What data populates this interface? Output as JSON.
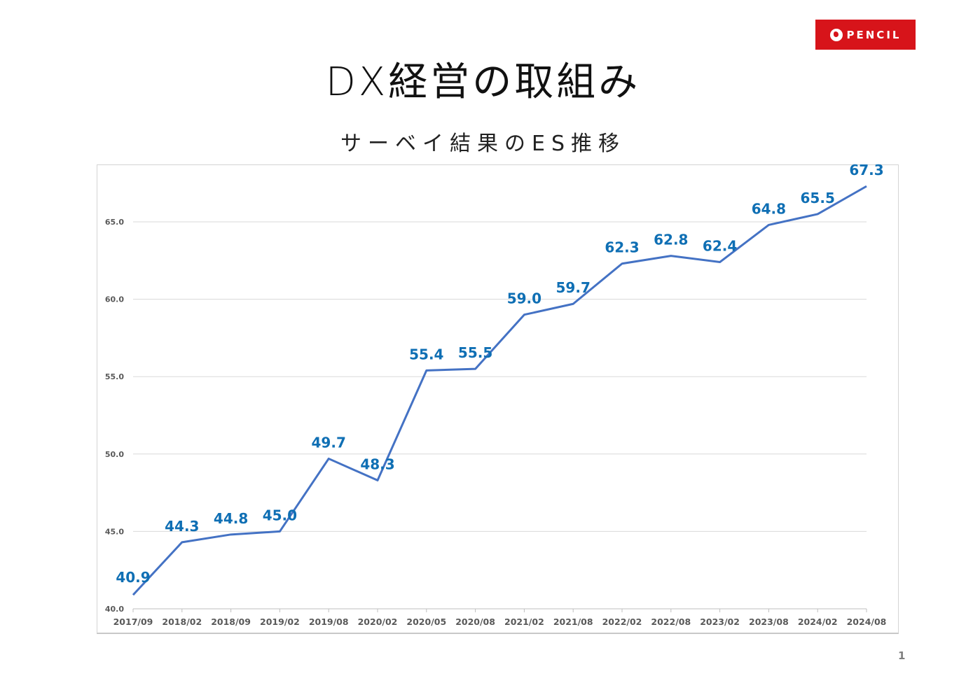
{
  "header": {
    "logo_text": "PENCIL",
    "title": "DX経営の取組み",
    "subtitle": "サーベイ結果のES推移"
  },
  "page_number": "1",
  "colors": {
    "line": "#4472c4",
    "data_label": "#0f6fb4",
    "axis_text": "#595959",
    "grid": "#d9d9d9",
    "logo_bg": "#d7141a"
  },
  "chart_data": {
    "type": "line",
    "title": "サーベイ結果のES推移",
    "xlabel": "",
    "ylabel": "",
    "categories": [
      "2017/09",
      "2018/02",
      "2018/09",
      "2019/02",
      "2019/08",
      "2020/02",
      "2020/05",
      "2020/08",
      "2021/02",
      "2021/08",
      "2022/02",
      "2022/08",
      "2023/02",
      "2023/08",
      "2024/02",
      "2024/08"
    ],
    "series": [
      {
        "name": "ES",
        "values": [
          40.9,
          44.3,
          44.8,
          45.0,
          49.7,
          48.3,
          55.4,
          55.5,
          59.0,
          59.7,
          62.3,
          62.8,
          62.4,
          64.8,
          65.5,
          67.3
        ]
      }
    ],
    "data_labels": [
      "40.9",
      "44.3",
      "44.8",
      "45.0",
      "49.7",
      "48.3",
      "55.4",
      "55.5",
      "59.0",
      "59.7",
      "62.3",
      "62.8",
      "62.4",
      "64.8",
      "65.5",
      "67.3"
    ],
    "ylim": [
      40,
      67.5
    ],
    "yticks": [
      40,
      45,
      50,
      55,
      60,
      65
    ],
    "ytick_labels": [
      "40.0",
      "45.0",
      "50.0",
      "55.0",
      "60.0",
      "65.0"
    ],
    "grid": true,
    "legend": "none"
  }
}
